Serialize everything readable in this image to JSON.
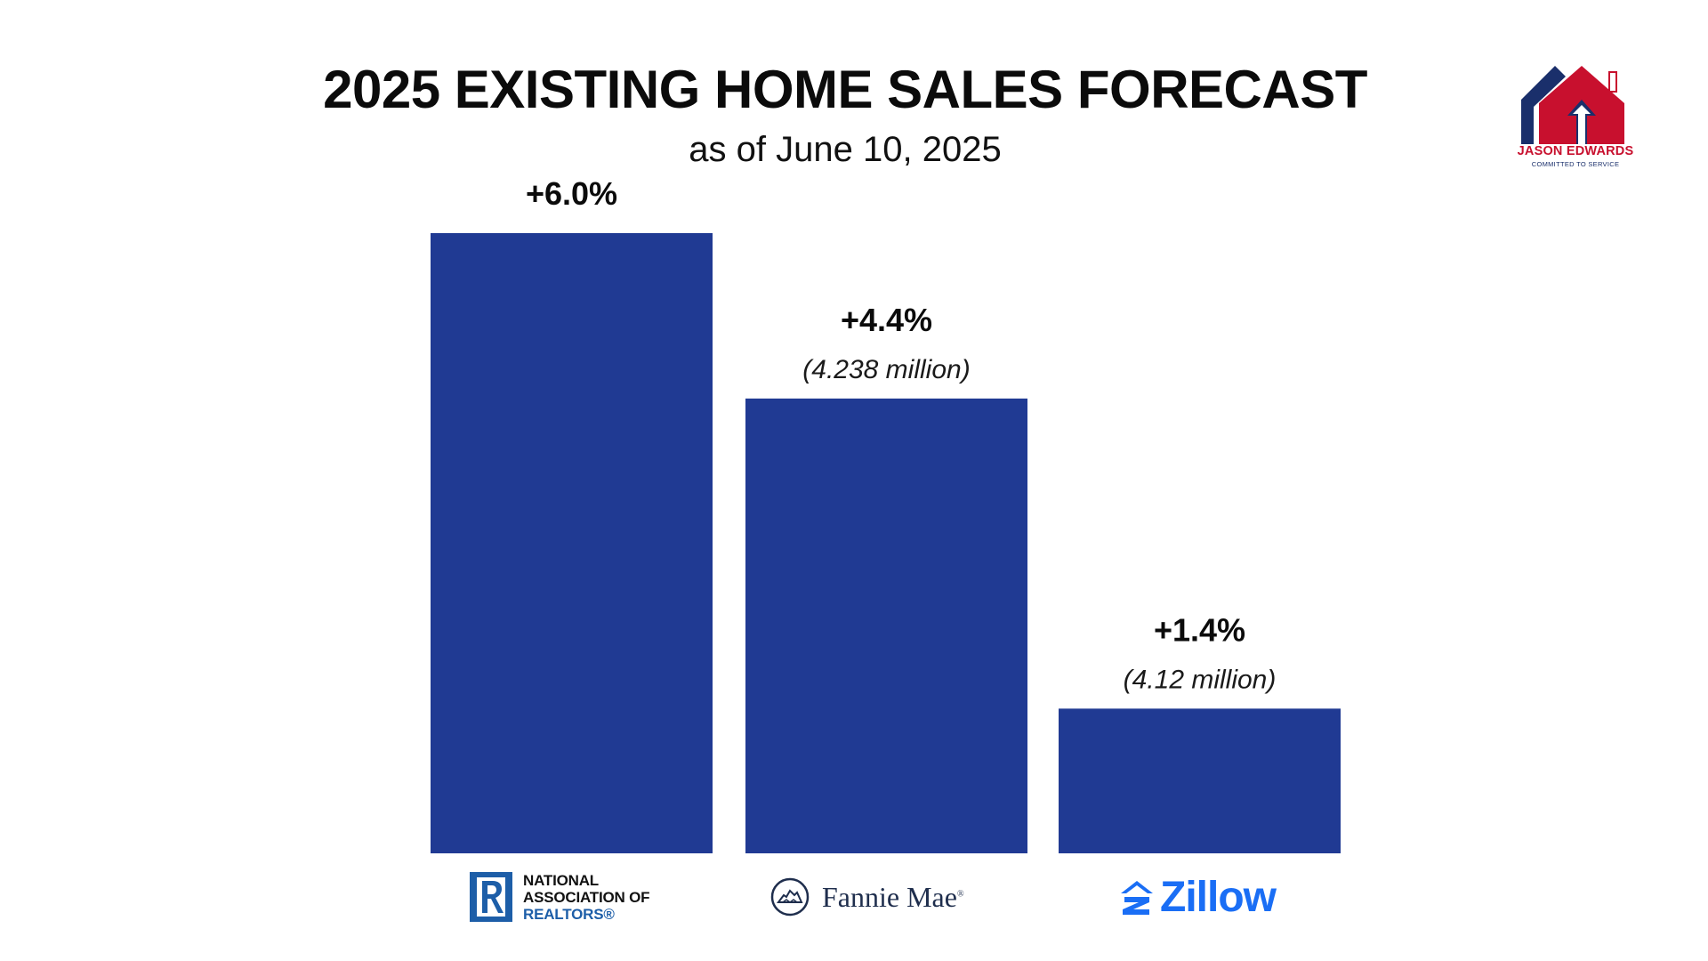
{
  "chart_data": {
    "type": "bar",
    "title": "2025 EXISTING HOME SALES FORECAST",
    "subtitle": "as of June 10, 2025",
    "categories": [
      "NATIONAL ASSOCIATION OF REALTORS®",
      "Fannie Mae",
      "Zillow"
    ],
    "values": [
      6.0,
      4.4,
      1.4
    ],
    "value_labels": [
      "+6.0%",
      "+4.4%",
      "+1.4%"
    ],
    "sublabels": [
      "",
      "(4.238 million)",
      "(4.12 million)"
    ],
    "bar_color": "#203a93",
    "ylim": [
      0,
      6.0
    ],
    "grid": false,
    "legend": "none"
  },
  "brand": {
    "name": "JASON EDWARDS",
    "tagline": "COMMITTED TO SERVICE",
    "colors": {
      "red": "#c8102e",
      "navy": "#1a2f6b"
    }
  },
  "sources": {
    "nar": {
      "line1": "NATIONAL",
      "line2": "ASSOCIATION OF",
      "line3": "REALTORS®",
      "icon": "realtor-r-icon"
    },
    "fannie": {
      "name": "Fannie Mae",
      "reg": "®",
      "icon": "fannie-mae-house-icon"
    },
    "zillow": {
      "name": "Zillow",
      "icon": "zillow-z-icon"
    }
  }
}
